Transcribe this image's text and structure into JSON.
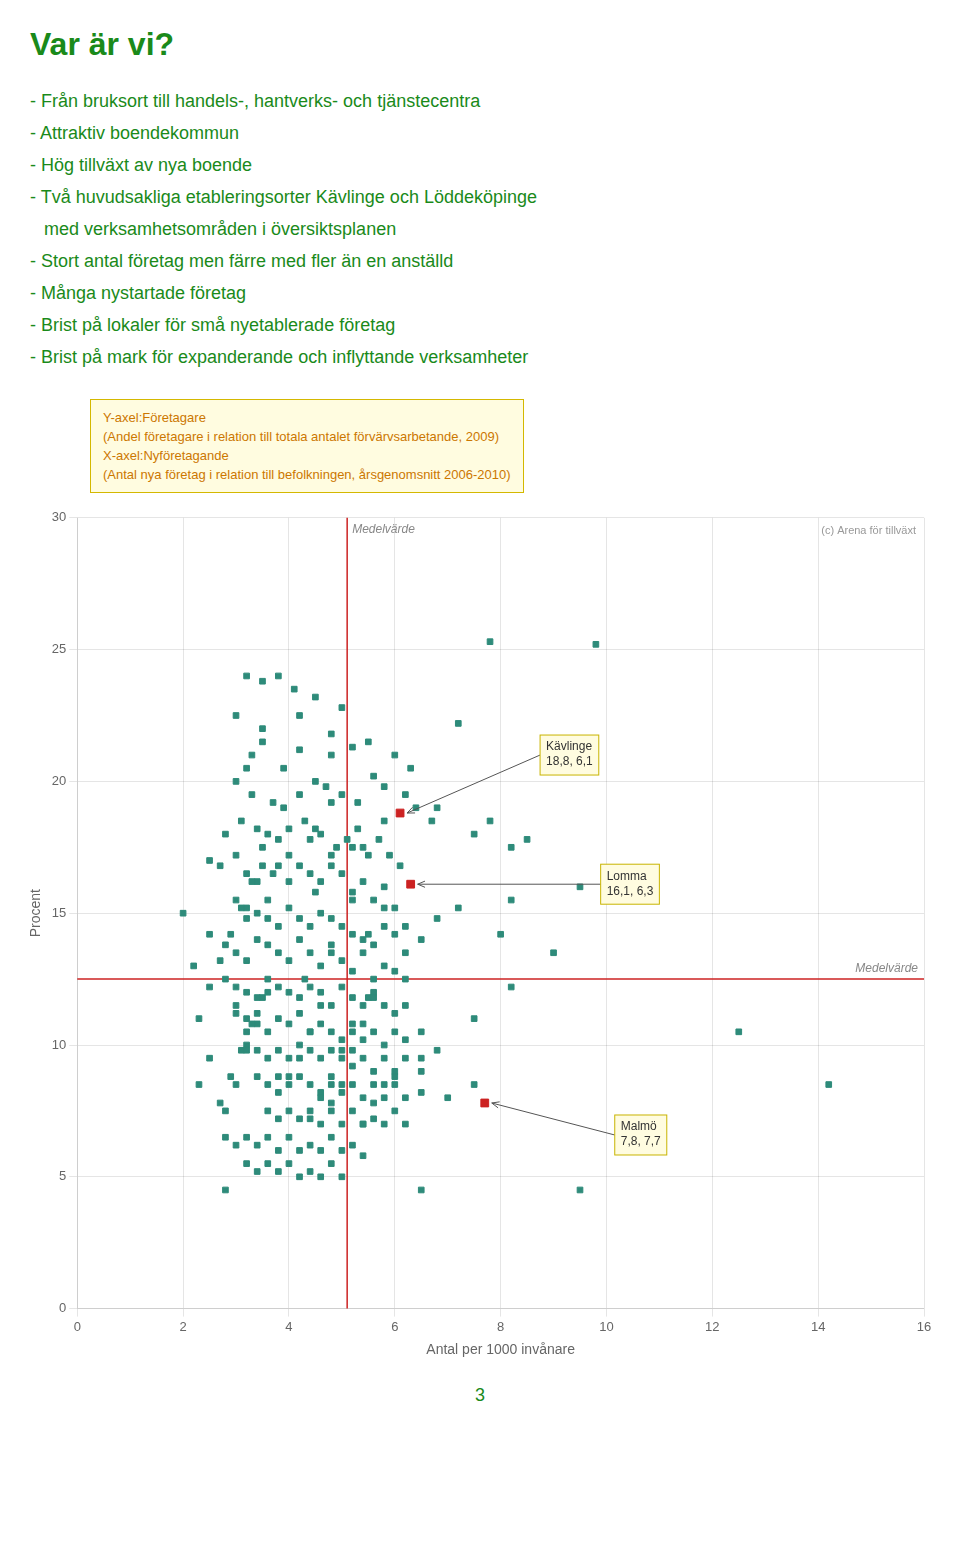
{
  "chart_data": {
    "type": "scatter",
    "title": "Var är vi?",
    "text_lines": [
      "- Från bruksort till handels-, hantverks- och tjänstecentra",
      "- Attraktiv boendekommun",
      "- Hög tillväxt av nya boende",
      "- Två huvudsakliga etableringsorter Kävlinge och Löddeköpinge",
      "med verksamhetsområden i översiktsplanen",
      "- Stort antal företag men färre med fler än en anställd",
      "- Många nystartade företag",
      "- Brist på lokaler för små nyetablerade företag",
      "- Brist på mark för expanderande och inflyttande verksamheter"
    ],
    "note": "Y-axel:Företagare\n(Andel företagare i relation till totala antalet förvärvsarbetande, 2009)\nX-axel:Nyföretagande\n(Antal nya företag i relation till befolkningen, årsgenomsnitt 2006-2010)",
    "copyright": "(c) Arena för tillväxt",
    "page_number": "3",
    "xlabel": "Antal per 1000 invånare",
    "ylabel": "Procent",
    "xlim": [
      0,
      16
    ],
    "ylim": [
      0,
      30
    ],
    "xticks": [
      0,
      2,
      4,
      6,
      8,
      10,
      12,
      14,
      16
    ],
    "yticks": [
      0,
      5,
      10,
      15,
      20,
      25,
      30
    ],
    "grid": true,
    "marker": "square",
    "reference_lines": [
      {
        "axis": "x",
        "value": 5.1,
        "color": "#cc2222",
        "label": "Medelvärde"
      },
      {
        "axis": "y",
        "value": 12.5,
        "color": "#cc2222",
        "label": "Medelvärde"
      }
    ],
    "series": [
      {
        "color": "#2e8b7a",
        "x": [
          3.2,
          3.5,
          4.1,
          4.8,
          5.2,
          5.5,
          6.0,
          6.3,
          7.8,
          9.8,
          3.0,
          3.3,
          3.7,
          3.9,
          4.2,
          4.5,
          4.7,
          5.0,
          5.3,
          5.6,
          5.8,
          6.2,
          6.4,
          6.7,
          7.5,
          8.2,
          2.8,
          3.1,
          3.4,
          3.6,
          3.8,
          4.0,
          4.3,
          4.6,
          4.9,
          5.1,
          5.4,
          5.7,
          5.9,
          6.1,
          2.5,
          2.7,
          3.0,
          3.2,
          3.5,
          3.7,
          4.0,
          4.2,
          4.4,
          4.6,
          4.8,
          5.0,
          5.2,
          5.4,
          5.6,
          5.8,
          6.0,
          6.2,
          8.2,
          9.5,
          3.0,
          3.2,
          3.4,
          3.6,
          3.8,
          4.0,
          4.2,
          4.4,
          4.6,
          4.8,
          5.0,
          5.2,
          5.4,
          5.6,
          5.8,
          6.0,
          6.2,
          6.5,
          8.2,
          2.5,
          2.8,
          3.0,
          3.2,
          3.4,
          3.6,
          3.8,
          4.0,
          4.2,
          4.4,
          4.6,
          4.8,
          5.0,
          5.2,
          5.4,
          5.6,
          5.8,
          6.0,
          6.2,
          2.8,
          3.0,
          3.2,
          3.4,
          3.6,
          3.8,
          4.0,
          4.2,
          4.4,
          4.6,
          4.8,
          5.0,
          5.2,
          5.4,
          5.6,
          5.8,
          6.0,
          6.2,
          6.5,
          3.0,
          3.2,
          3.4,
          3.6,
          3.8,
          4.0,
          4.2,
          4.4,
          4.6,
          4.8,
          5.0,
          5.2,
          5.4,
          5.6,
          5.8,
          6.0,
          6.2,
          6.5,
          6.8,
          12.5,
          3.2,
          3.4,
          3.6,
          3.8,
          4.0,
          4.2,
          4.4,
          4.6,
          4.8,
          5.0,
          5.2,
          5.4,
          5.6,
          5.8,
          6.0,
          6.5,
          14.2,
          3.4,
          3.6,
          3.8,
          4.0,
          4.2,
          4.4,
          4.6,
          4.8,
          5.0,
          5.2,
          5.4,
          5.6,
          5.8,
          6.0,
          6.2,
          6.5,
          7.0,
          7.5,
          3.6,
          3.8,
          4.0,
          4.2,
          4.4,
          4.6,
          4.8,
          5.0,
          5.2,
          5.4,
          5.6,
          5.8,
          6.0,
          6.2,
          2.8,
          3.0,
          3.2,
          3.4,
          3.6,
          3.8,
          4.0,
          4.2,
          4.4,
          4.6,
          4.8,
          5.0,
          5.2,
          5.4,
          3.2,
          3.4,
          3.6,
          3.8,
          4.0,
          4.2,
          4.4,
          4.6,
          4.8,
          5.0,
          6.5,
          9.5,
          2.8,
          3.0,
          3.2,
          3.4,
          4.2,
          3.3,
          4.0,
          4.5,
          3.8,
          4.3,
          5.5,
          6.8,
          7.2,
          8.0,
          9.0,
          7.5,
          3.2,
          4.8,
          5.2,
          5.8,
          4.8,
          3.2,
          5.8,
          4.4,
          5.5,
          3.6,
          6.8,
          8.5,
          7.2,
          7.8,
          2.5,
          2.3,
          2.2,
          2.0,
          2.3,
          3.8,
          4.5,
          5.0,
          3.5,
          3.0,
          4.8,
          4.5,
          3.9,
          3.5,
          4.2,
          5.3,
          5.5,
          5.2,
          4.8,
          3.5,
          3.3,
          3.1,
          2.9,
          2.7,
          2.5,
          3.5,
          3.3,
          3.1,
          2.9,
          2.7,
          4.6,
          4.4,
          4.2,
          4.0,
          3.8,
          5.2,
          5.0,
          4.8,
          4.6,
          4.4,
          5.6,
          5.4,
          5.2,
          5.0,
          4.8,
          6.2,
          6.0,
          5.8,
          5.6,
          5.4,
          3.6,
          3.4,
          3.2,
          3.0,
          2.8
        ],
        "values": [
          24.0,
          23.8,
          23.5,
          21.0,
          21.3,
          21.5,
          21.0,
          20.5,
          25.3,
          25.2,
          20.0,
          19.5,
          19.2,
          19.0,
          19.5,
          20.0,
          19.8,
          19.5,
          19.2,
          20.2,
          19.8,
          19.5,
          19.0,
          18.5,
          18.0,
          17.5,
          18.0,
          18.5,
          18.2,
          18.0,
          17.8,
          18.2,
          18.5,
          18.0,
          17.5,
          17.8,
          17.5,
          17.8,
          17.2,
          16.8,
          17.0,
          16.8,
          17.2,
          16.5,
          16.8,
          16.5,
          16.2,
          16.8,
          16.5,
          16.2,
          16.8,
          16.5,
          15.8,
          16.2,
          15.5,
          16.0,
          15.2,
          14.5,
          15.5,
          16.0,
          15.5,
          15.2,
          15.0,
          14.8,
          14.5,
          15.2,
          14.8,
          14.5,
          15.0,
          14.8,
          14.5,
          14.2,
          14.0,
          13.8,
          14.5,
          14.2,
          13.5,
          14.0,
          12.2,
          14.2,
          13.8,
          13.5,
          13.2,
          14.0,
          13.8,
          13.5,
          13.2,
          14.0,
          13.5,
          13.0,
          13.5,
          13.2,
          12.8,
          13.5,
          12.5,
          13.0,
          12.8,
          12.5,
          12.5,
          12.2,
          12.0,
          11.8,
          12.5,
          12.2,
          12.0,
          11.8,
          12.2,
          12.0,
          11.5,
          12.2,
          11.8,
          11.5,
          12.0,
          11.5,
          11.2,
          11.5,
          10.5,
          11.2,
          11.0,
          10.8,
          10.5,
          11.0,
          10.8,
          11.2,
          10.5,
          10.8,
          10.5,
          10.2,
          10.8,
          10.2,
          10.5,
          10.0,
          10.5,
          10.2,
          9.5,
          9.8,
          10.5,
          10.0,
          9.8,
          9.5,
          9.8,
          9.5,
          10.0,
          9.8,
          9.5,
          9.8,
          9.5,
          9.2,
          9.5,
          9.0,
          9.5,
          9.0,
          9.0,
          8.5,
          8.8,
          8.5,
          8.8,
          8.5,
          8.8,
          8.5,
          8.2,
          8.5,
          8.2,
          8.5,
          8.0,
          8.5,
          8.0,
          8.5,
          8.0,
          8.2,
          8.0,
          8.5,
          7.5,
          7.2,
          7.5,
          7.2,
          7.5,
          7.0,
          7.5,
          7.0,
          7.5,
          7.0,
          7.2,
          7.0,
          7.5,
          7.0,
          6.5,
          6.2,
          6.5,
          6.2,
          6.5,
          6.0,
          6.5,
          6.0,
          6.2,
          6.0,
          6.5,
          6.0,
          6.2,
          5.8,
          5.5,
          5.2,
          5.5,
          5.2,
          5.5,
          5.0,
          5.2,
          5.0,
          5.5,
          5.0,
          4.5,
          4.5,
          4.5,
          11.5,
          14.8,
          16.2,
          22.5,
          21.0,
          17.2,
          15.8,
          16.8,
          12.5,
          11.8,
          14.8,
          15.2,
          14.2,
          13.5,
          11.0,
          10.5,
          13.8,
          15.5,
          18.5,
          21.8,
          20.5,
          15.2,
          17.8,
          14.2,
          15.5,
          19.0,
          17.8,
          22.2,
          18.5,
          9.5,
          11.0,
          13.0,
          15.0,
          8.5,
          24.0,
          23.2,
          22.8,
          22.0,
          22.5,
          19.2,
          18.2,
          20.5,
          21.5,
          21.2,
          18.2,
          17.2,
          17.5,
          17.2,
          17.5,
          16.2,
          15.2,
          14.2,
          13.2,
          12.2,
          11.8,
          10.8,
          9.8,
          8.8,
          7.8,
          11.5,
          10.5,
          9.5,
          8.8,
          8.2,
          10.5,
          9.8,
          8.8,
          8.0,
          7.2,
          11.8,
          10.8,
          9.8,
          8.5,
          7.8,
          9.5,
          8.8,
          8.5,
          7.8,
          7.0,
          12.0,
          11.2,
          9.8,
          8.5,
          7.5
        ]
      },
      {
        "color": "#cc2222",
        "x": [
          6.1,
          6.3,
          7.7
        ],
        "values": [
          18.8,
          16.1,
          7.8
        ],
        "point_labels": [
          "Kävlinge\n18,8, 6,1",
          "Lomma\n16,1, 6,3",
          "Malmö\n7,8, 7,7"
        ]
      }
    ]
  }
}
